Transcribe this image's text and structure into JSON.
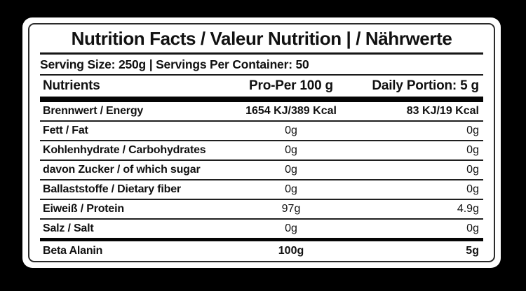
{
  "label": {
    "title": "Nutrition Facts / Valeur Nutrition | / Nährwerte",
    "serving_line": "Serving Size: 250g | Servings Per Container: 50",
    "columns": {
      "nutrients": "Nutrients",
      "per100": "Pro-Per 100 g",
      "portion": "Daily Portion: 5 g"
    },
    "rows": [
      {
        "name": "Brennwert / Energy",
        "per100": "1654 KJ/389 Kcal",
        "portion": "83 KJ/19 Kcal"
      },
      {
        "name": "Fett / Fat",
        "per100": "0g",
        "portion": "0g"
      },
      {
        "name": "Kohlenhydrate / Carbohydrates",
        "per100": "0g",
        "portion": "0g"
      },
      {
        "name": "davon Zucker / of which sugar",
        "per100": "0g",
        "portion": "0g"
      },
      {
        "name": "Ballaststoffe / Dietary fiber",
        "per100": "0g",
        "portion": "0g"
      },
      {
        "name": "Eiweiß / Protein",
        "per100": "97g",
        "portion": "4.9g"
      },
      {
        "name": "Salz / Salt",
        "per100": "0g",
        "portion": "0g"
      },
      {
        "name": "Beta Alanin",
        "per100": "100g",
        "portion": "5g"
      }
    ],
    "colors": {
      "page_background": "#000000",
      "card_background": "#ffffff",
      "border": "#2b2b2b",
      "text": "#111111",
      "divider": "#1f1f1f"
    }
  }
}
